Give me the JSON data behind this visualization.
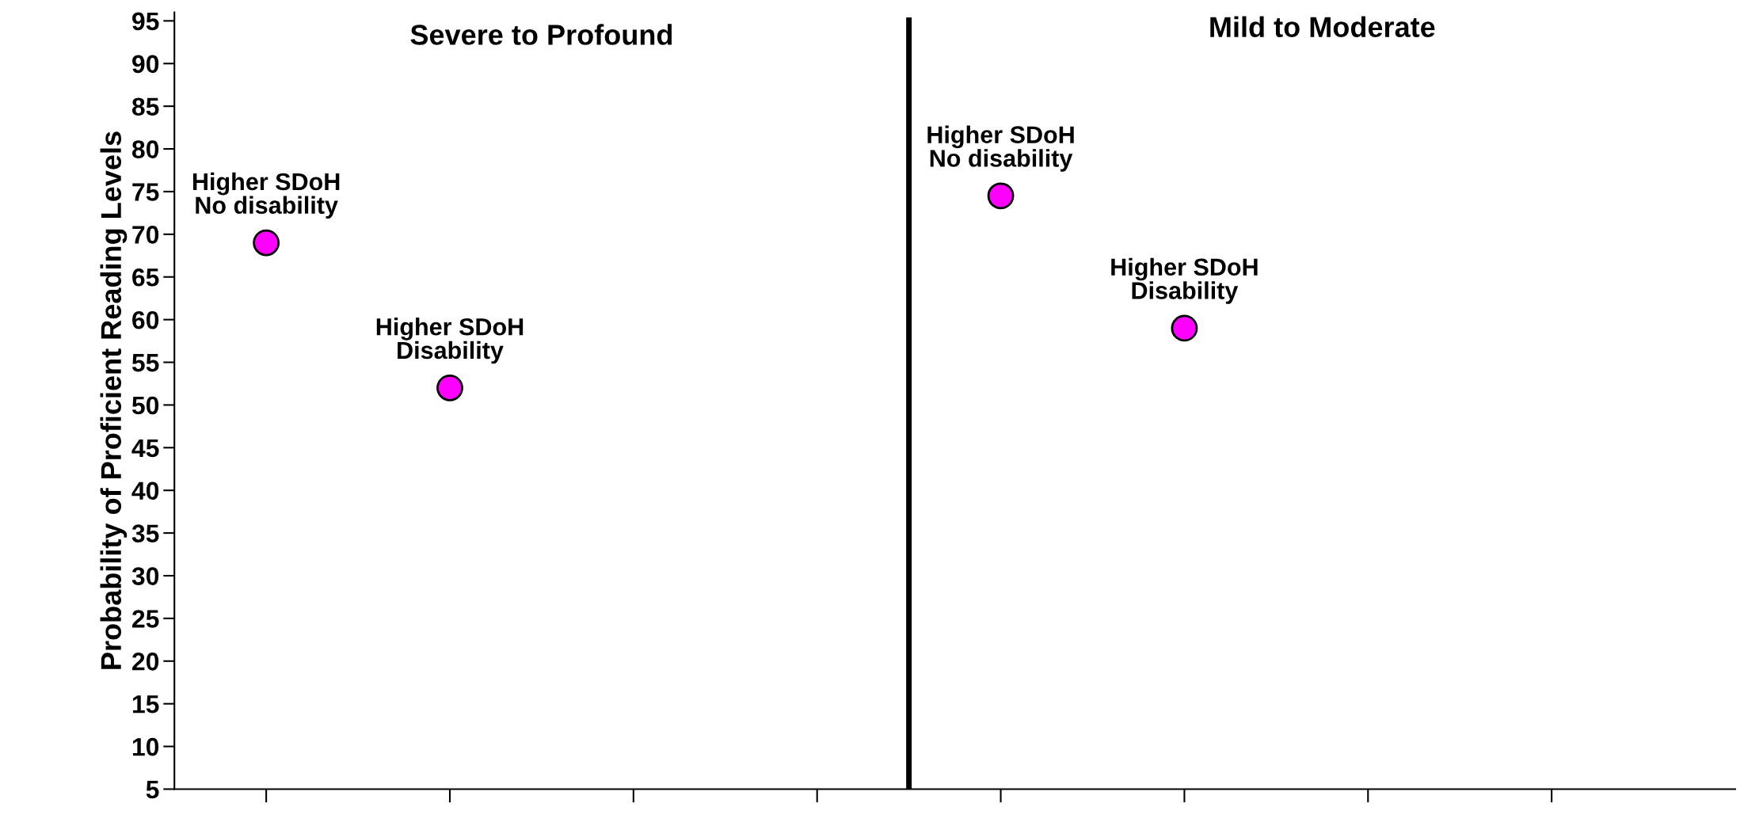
{
  "chart_data": {
    "type": "scatter",
    "ylabel": "Probability of Proficient Reading Levels",
    "categories": [
      null,
      null,
      null,
      null,
      null,
      null,
      null,
      null
    ],
    "series": [
      {
        "color": "#ff00ff",
        "values": [
          69,
          52,
          null,
          null,
          74.5,
          59,
          null,
          null
        ],
        "value_labels": [
          "Higher SDoH\nNo disability",
          "Higher SDoH\nDisability",
          null,
          null,
          "Higher SDoH\nNo disability",
          "Higher SDoH\nDisability",
          null,
          null
        ]
      }
    ],
    "annotations": [
      "Severe to Profound",
      "Mild to Moderate"
    ],
    "ylim": [
      5,
      96
    ],
    "yticks": [
      5,
      10,
      15,
      20,
      25,
      30,
      35,
      40,
      45,
      50,
      55,
      60,
      65,
      70,
      75,
      80,
      85,
      90,
      95
    ],
    "marker": "circle",
    "grid": false,
    "legend": false
  }
}
